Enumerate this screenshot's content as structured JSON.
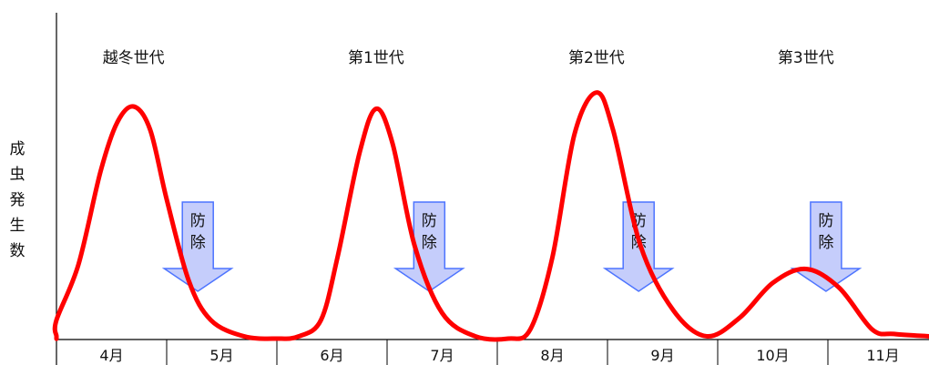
{
  "chart_data": {
    "type": "line",
    "title": "",
    "ylabel": "成虫発生数",
    "xlabel": "",
    "months": [
      "4月",
      "5月",
      "6月",
      "7月",
      "8月",
      "9月",
      "10月",
      "11月"
    ],
    "generations": [
      {
        "label": "越冬世代",
        "peak_month": 4.7,
        "peak_value": 100
      },
      {
        "label": "第1世代",
        "peak_month": 6.9,
        "peak_value": 99
      },
      {
        "label": "第2世代",
        "peak_month": 8.9,
        "peak_value": 106
      },
      {
        "label": "第3世代",
        "peak_month": 10.8,
        "peak_value": 30
      }
    ],
    "control": [
      {
        "label": "防除",
        "month": 5.2
      },
      {
        "label": "防除",
        "month": 7.3
      },
      {
        "label": "防除",
        "month": 9.2
      },
      {
        "label": "防除",
        "month": 10.9
      }
    ],
    "series": [
      {
        "name": "",
        "color": "#ff0000",
        "x": [
          3.0,
          3.5,
          3.7,
          4.0,
          4.2,
          4.4,
          4.55,
          4.7,
          4.85,
          5.0,
          5.2,
          5.4,
          5.7,
          6.0,
          6.2,
          6.4,
          6.55,
          6.75,
          6.9,
          7.05,
          7.25,
          7.5,
          7.8,
          8.1,
          8.3,
          8.5,
          8.7,
          8.9,
          9.05,
          9.3,
          9.6,
          9.9,
          10.2,
          10.5,
          10.8,
          11.1,
          11.4,
          11.6,
          12.0
        ],
        "y": [
          0,
          0,
          1,
          8,
          32,
          72,
          93,
          100,
          90,
          60,
          25,
          8,
          1,
          0,
          1,
          8,
          35,
          80,
          99,
          84,
          40,
          11,
          1,
          0,
          4,
          35,
          88,
          106,
          90,
          40,
          12,
          1,
          9,
          24,
          30,
          22,
          4,
          2,
          1
        ]
      }
    ],
    "ylim": [
      0,
      115
    ],
    "xlim": [
      3.0,
      12.0
    ]
  }
}
